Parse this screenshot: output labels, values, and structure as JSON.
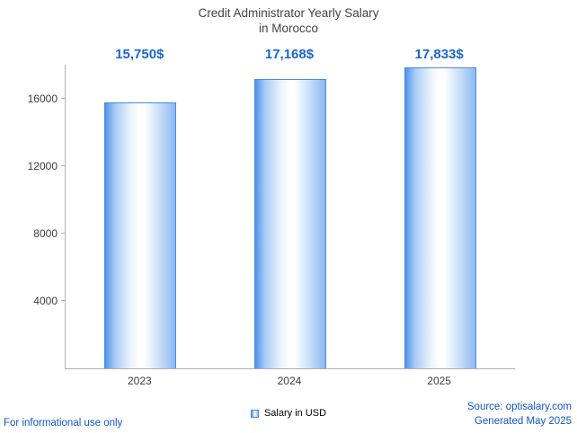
{
  "title": {
    "line1": "Credit Administrator Yearly Salary",
    "line2": "in Morocco"
  },
  "chart_data": {
    "type": "bar",
    "title": "Credit Administrator Yearly Salary in Morocco",
    "categories": [
      "2023",
      "2024",
      "2025"
    ],
    "values": [
      15750,
      17168,
      17833
    ],
    "value_labels": [
      "15,750$",
      "17,168$",
      "17,833$"
    ],
    "xlabel": "",
    "ylabel": "",
    "ylim": [
      0,
      18000
    ],
    "yticks": [
      4000,
      8000,
      12000,
      16000
    ],
    "grid": false,
    "legend": [
      "Salary in USD"
    ],
    "legend_position": "bottom"
  },
  "legend": {
    "label": "Salary in USD"
  },
  "footer": {
    "left": "For informational use only",
    "source": "Source: optisalary.com",
    "generated": "Generated May 2025"
  },
  "colors": {
    "value_label_blue": "#1967d2",
    "footer_blue": "#1155cc",
    "bar_edge_blue": "#4a8ada",
    "bar_fill_light": "#ffffff",
    "bar_fill_mid": "#8db9f2",
    "axis_gray": "#b0b0b0",
    "title_gray": "#424242"
  }
}
